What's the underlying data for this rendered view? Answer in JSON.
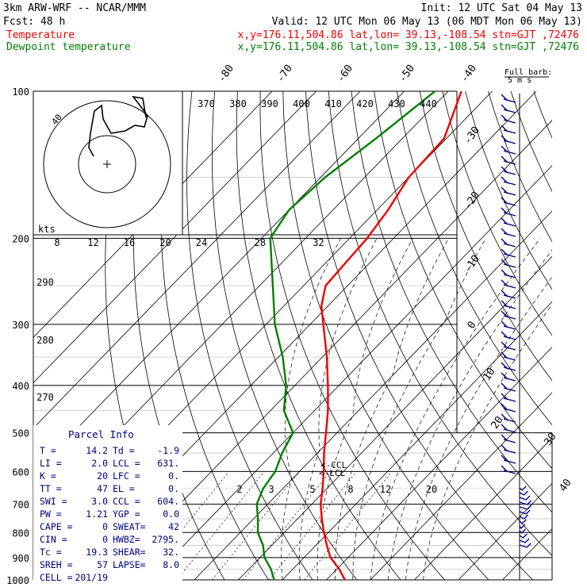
{
  "header": {
    "model": "3km ARW-WRF -- NCAR/MMM",
    "init": "Init: 12 UTC Sat 04 May 13",
    "fcst": "Fcst:   48 h",
    "valid": "Valid: 12 UTC Mon 06 May 13 (06 MDT Mon 06 May 13)",
    "temp_label": "Temperature",
    "dew_label": "Dewpoint temperature",
    "temp_loc": "x,y=176.11,504.86   lat,lon= 39.13,-108.54   stn=GJT ,72476",
    "dew_loc": "x,y=176.11,504.86   lat,lon= 39.13,-108.54   stn=GJT ,72476",
    "barb_label_1": "Full barb:",
    "barb_label_2": "5 m s"
  },
  "colors": {
    "temperature": "#ee0000",
    "dewpoint": "#008000",
    "barbs": "#000080",
    "text": "#000000"
  },
  "chart_data": {
    "type": "line",
    "diagram": "skew-T log-p",
    "pressure_levels_hPa": [
      "100",
      "200",
      "300",
      "400",
      "500",
      "600",
      "700",
      "800",
      "900",
      "1000"
    ],
    "isotherm_labels_C": [
      "-80",
      "-70",
      "-60",
      "-50",
      "-40",
      "-30",
      "-20",
      "-10",
      "0",
      "10",
      "20",
      "30",
      "40"
    ],
    "theta_labels_K": [
      "370",
      "380",
      "390",
      "400",
      "410",
      "420",
      "430",
      "440"
    ],
    "theta_side_labels_K": [
      "290",
      "280",
      "270"
    ],
    "mixing_ratio_labels": [
      "2",
      "3",
      "5",
      "8",
      "12",
      "20"
    ],
    "hodograph_speed_labels": [
      "8",
      "12",
      "16",
      "20",
      "24",
      "28",
      "32"
    ],
    "hodograph_speed_unit": "kts",
    "hodograph_ring_label": "40",
    "ccl_label": "<-CCL",
    "lcl_label": "<-LCL",
    "series": [
      {
        "name": "Temperature",
        "points": [
          {
            "p": 1000,
            "t": 14.2
          },
          {
            "p": 950,
            "t": 10.5
          },
          {
            "p": 900,
            "t": 6.0
          },
          {
            "p": 850,
            "t": 2.5
          },
          {
            "p": 800,
            "t": -1.0
          },
          {
            "p": 750,
            "t": -4.5
          },
          {
            "p": 700,
            "t": -8.0
          },
          {
            "p": 650,
            "t": -11.0
          },
          {
            "p": 600,
            "t": -14.5
          },
          {
            "p": 550,
            "t": -18.5
          },
          {
            "p": 500,
            "t": -22.5
          },
          {
            "p": 450,
            "t": -27.0
          },
          {
            "p": 400,
            "t": -32.5
          },
          {
            "p": 350,
            "t": -39.0
          },
          {
            "p": 300,
            "t": -47.0
          },
          {
            "p": 275,
            "t": -51.5
          },
          {
            "p": 250,
            "t": -55.0
          },
          {
            "p": 225,
            "t": -55.5
          },
          {
            "p": 200,
            "t": -56.0
          },
          {
            "p": 175,
            "t": -57.5
          },
          {
            "p": 150,
            "t": -60.0
          },
          {
            "p": 125,
            "t": -60.5
          },
          {
            "p": 100,
            "t": -67.0
          }
        ]
      },
      {
        "name": "Dewpoint temperature",
        "points": [
          {
            "p": 1000,
            "t": -1.9
          },
          {
            "p": 950,
            "t": -5.0
          },
          {
            "p": 900,
            "t": -9.0
          },
          {
            "p": 850,
            "t": -12.0
          },
          {
            "p": 800,
            "t": -16.0
          },
          {
            "p": 750,
            "t": -19.0
          },
          {
            "p": 700,
            "t": -22.5
          },
          {
            "p": 650,
            "t": -24.5
          },
          {
            "p": 600,
            "t": -25.5
          },
          {
            "p": 550,
            "t": -28.0
          },
          {
            "p": 500,
            "t": -30.0
          },
          {
            "p": 450,
            "t": -37.0
          },
          {
            "p": 400,
            "t": -42.0
          },
          {
            "p": 350,
            "t": -49.0
          },
          {
            "p": 300,
            "t": -58.0
          },
          {
            "p": 250,
            "t": -67.0
          },
          {
            "p": 200,
            "t": -78.0
          },
          {
            "p": 175,
            "t": -80.0
          },
          {
            "p": 150,
            "t": -79.0
          },
          {
            "p": 125,
            "t": -76.0
          },
          {
            "p": 100,
            "t": -73.0
          }
        ]
      }
    ]
  },
  "parcel_info": {
    "title": "Parcel Info",
    "rows": [
      {
        "l1": "T  =",
        "v1": "14.2",
        "l2": "Td =",
        "v2": "-1.9"
      },
      {
        "l1": "LI =",
        "v1": "2.0",
        "l2": "LCL =",
        "v2": "631."
      },
      {
        "l1": "K  =",
        "v1": "20",
        "l2": "LFC =",
        "v2": "0."
      },
      {
        "l1": "TT =",
        "v1": "47",
        "l2": "EL  =",
        "v2": "0."
      },
      {
        "l1": "SWI =",
        "v1": "3.0",
        "l2": "CCL =",
        "v2": "604."
      },
      {
        "l1": "PW =",
        "v1": "1.21",
        "l2": "YGP =",
        "v2": "0.0"
      },
      {
        "l1": "CAPE =",
        "v1": "0",
        "l2": "SWEAT=",
        "v2": "42"
      },
      {
        "l1": "CIN =",
        "v1": "0",
        "l2": "HWBZ=",
        "v2": "2795."
      },
      {
        "l1": "Tc =",
        "v1": "19.3",
        "l2": "SHEAR=",
        "v2": "32."
      },
      {
        "l1": "SREH =",
        "v1": "57",
        "l2": "LAPSE=",
        "v2": "8.0"
      },
      {
        "l1": "CELL =",
        "v1": "201/19",
        "l2": "",
        "v2": ""
      }
    ]
  }
}
